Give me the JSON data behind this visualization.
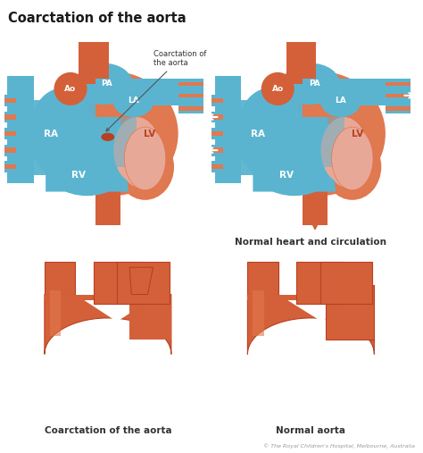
{
  "title": "Coarctation of the aorta",
  "bg_color": "#ffffff",
  "title_fontsize": 10.5,
  "title_fontweight": "bold",
  "label_top_right": "Normal heart and circulation",
  "label_bottom_left": "Coarctation of the aorta",
  "label_bottom_right": "Normal aorta",
  "coarctation_label": "Coarctation of\nthe aorta",
  "copyright": "© The Royal Children's Hospital, Melbourne, Australia",
  "heart_blue": "#5ab4d0",
  "heart_red": "#d4603a",
  "heart_light_red": "#e07850",
  "heart_pink": "#e8a898",
  "heart_dark_red": "#b84020",
  "vein_blue": "#4aa8c8",
  "label_color": "#333333",
  "sub_label_fontsize": 7.5,
  "annotation_fontsize": 7.0
}
